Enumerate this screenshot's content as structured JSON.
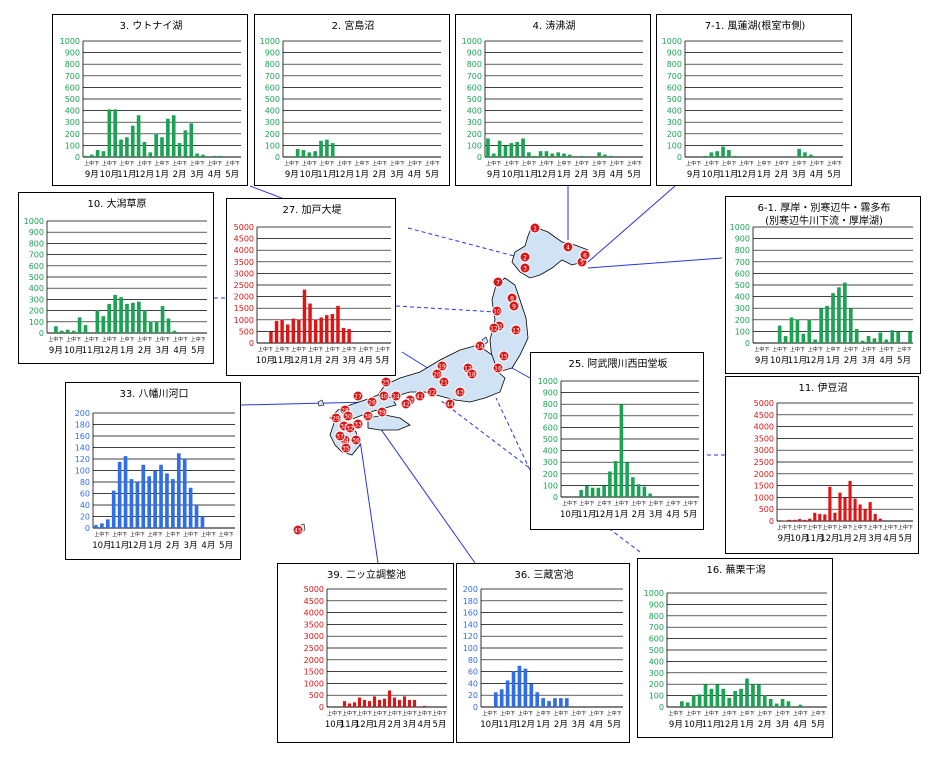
{
  "colors": {
    "green": "#1aa352",
    "red": "#e01414",
    "blue": "#2f6ee8",
    "map_fill": "#cfe3f5"
  },
  "chart_data": [
    {
      "id": "p3",
      "type": "bar",
      "title": "3. ウトナイ湖",
      "color": "green",
      "ylim": [
        0,
        1000
      ],
      "yticks": [
        "0",
        "100",
        "200",
        "300",
        "400",
        "500",
        "600",
        "700",
        "800",
        "900",
        "1000"
      ],
      "months": [
        "9月",
        "10月",
        "11月",
        "12月",
        "1月",
        "2月",
        "3月",
        "4月",
        "5月"
      ],
      "values": [
        10,
        20,
        60,
        50,
        410,
        410,
        150,
        170,
        270,
        360,
        130,
        40,
        200,
        170,
        330,
        360,
        120,
        230,
        290,
        30,
        20,
        0,
        10,
        10,
        0,
        0,
        0
      ]
    },
    {
      "id": "p2",
      "type": "bar",
      "title": "2. 宮島沼",
      "color": "green",
      "ylim": [
        0,
        1000
      ],
      "yticks": [
        "0",
        "100",
        "200",
        "300",
        "400",
        "500",
        "600",
        "700",
        "800",
        "900",
        "1000"
      ],
      "months": [
        "9月",
        "10月",
        "11月",
        "12月",
        "1月",
        "2月",
        "3月",
        "4月",
        "5月"
      ],
      "values": [
        0,
        0,
        70,
        60,
        40,
        50,
        140,
        150,
        120,
        0,
        0,
        0,
        0,
        0,
        0,
        0,
        0,
        0,
        0,
        0,
        0,
        0,
        0,
        0,
        0,
        0,
        0
      ]
    },
    {
      "id": "p4",
      "type": "bar",
      "title": "4. 涛沸湖",
      "color": "green",
      "ylim": [
        0,
        1000
      ],
      "yticks": [
        "0",
        "100",
        "200",
        "300",
        "400",
        "500",
        "600",
        "700",
        "800",
        "900",
        "1000"
      ],
      "months": [
        "9月",
        "10月",
        "11月",
        "12月",
        "1月",
        "2月",
        "3月",
        "4月",
        "5月"
      ],
      "values": [
        160,
        30,
        140,
        100,
        120,
        130,
        160,
        40,
        10,
        50,
        50,
        30,
        40,
        30,
        20,
        0,
        10,
        0,
        0,
        40,
        20,
        10,
        0,
        0,
        0,
        0,
        0
      ]
    },
    {
      "id": "p71",
      "type": "bar",
      "title": "7-1. 風蓮湖(根室市側)",
      "color": "green",
      "ylim": [
        0,
        1000
      ],
      "yticks": [
        "0",
        "100",
        "200",
        "300",
        "400",
        "500",
        "600",
        "700",
        "800",
        "900",
        "1000"
      ],
      "months": [
        "9月",
        "10月",
        "11月",
        "12月",
        "1月",
        "2月",
        "3月",
        "4月",
        "5月"
      ],
      "values": [
        0,
        0,
        0,
        10,
        40,
        50,
        90,
        60,
        10,
        0,
        0,
        0,
        0,
        0,
        0,
        0,
        0,
        0,
        0,
        70,
        40,
        20,
        0,
        0,
        0,
        0,
        0
      ]
    },
    {
      "id": "p10",
      "type": "bar",
      "title": "10. 大潟草原",
      "color": "green",
      "ylim": [
        0,
        1000
      ],
      "yticks": [
        "0",
        "100",
        "200",
        "300",
        "400",
        "500",
        "600",
        "700",
        "800",
        "900",
        "1000"
      ],
      "months": [
        "9月",
        "10月",
        "11月",
        "12月",
        "1月",
        "2月",
        "3月",
        "4月",
        "5月"
      ],
      "values": [
        0,
        60,
        20,
        30,
        20,
        140,
        70,
        0,
        200,
        150,
        260,
        340,
        320,
        260,
        270,
        280,
        200,
        100,
        100,
        240,
        130,
        20,
        0,
        0,
        0,
        0,
        0
      ]
    },
    {
      "id": "p27",
      "type": "bar",
      "title": "27. 加戸大堤",
      "color": "red",
      "ylim": [
        0,
        5000
      ],
      "yticks": [
        "0",
        "500",
        "1000",
        "1500",
        "2000",
        "2500",
        "3000",
        "3500",
        "4000",
        "4500",
        "5000"
      ],
      "months": [
        "10月",
        "11月",
        "12月",
        "1月",
        "2月",
        "3月",
        "4月",
        "5月"
      ],
      "values": [
        0,
        0,
        500,
        950,
        1000,
        800,
        1050,
        1000,
        2300,
        1700,
        1000,
        1100,
        1200,
        1250,
        1600,
        650,
        600,
        0,
        0,
        0,
        0,
        0,
        0,
        0
      ]
    },
    {
      "id": "p61",
      "type": "bar",
      "title": "6-1. 厚岸・別寒辺牛・霧多布",
      "subtitle": "(別寒辺牛川下流・厚岸湖)",
      "color": "green",
      "ylim": [
        0,
        1000
      ],
      "yticks": [
        "0",
        "100",
        "200",
        "300",
        "400",
        "500",
        "600",
        "700",
        "800",
        "900",
        "1000"
      ],
      "months": [
        "9月",
        "10月",
        "11月",
        "12月",
        "1月",
        "2月",
        "3月",
        "4月",
        "5月"
      ],
      "values": [
        0,
        0,
        0,
        0,
        150,
        60,
        220,
        200,
        80,
        200,
        30,
        300,
        320,
        430,
        480,
        520,
        300,
        120,
        20,
        60,
        40,
        90,
        30,
        110,
        100,
        0,
        100
      ]
    },
    {
      "id": "p33",
      "type": "bar",
      "title": "33. 八幡川河口",
      "color": "blue",
      "ylim": [
        0,
        200
      ],
      "yticks": [
        "0",
        "20",
        "40",
        "60",
        "80",
        "100",
        "120",
        "140",
        "160",
        "180",
        "200"
      ],
      "months": [
        "10月",
        "11月",
        "12月",
        "1月",
        "2月",
        "3月",
        "4月",
        "5月"
      ],
      "values": [
        5,
        8,
        15,
        65,
        115,
        125,
        85,
        80,
        110,
        90,
        100,
        110,
        95,
        85,
        130,
        120,
        70,
        40,
        20,
        0,
        0,
        0,
        0,
        0
      ]
    },
    {
      "id": "p25",
      "type": "bar",
      "title": "25. 阿武隈川西田堂坂",
      "color": "green",
      "ylim": [
        0,
        1000
      ],
      "yticks": [
        "0",
        "100",
        "200",
        "300",
        "400",
        "500",
        "600",
        "700",
        "800",
        "900",
        "1000"
      ],
      "months": [
        "10月",
        "11月",
        "12月",
        "1月",
        "2月",
        "3月",
        "4月",
        "5月"
      ],
      "values": [
        0,
        0,
        0,
        60,
        100,
        80,
        80,
        100,
        220,
        310,
        800,
        300,
        170,
        110,
        90,
        30,
        0,
        0,
        0,
        0,
        0,
        0,
        0,
        0
      ]
    },
    {
      "id": "p11",
      "type": "bar",
      "title": "11. 伊豆沼",
      "color": "red",
      "ylim": [
        0,
        5000
      ],
      "yticks": [
        "0",
        "500",
        "1000",
        "1500",
        "2000",
        "2500",
        "3000",
        "3500",
        "4000",
        "4500",
        "5000"
      ],
      "months": [
        "9月",
        "10月",
        "11月",
        "12月",
        "1月",
        "2月",
        "3月",
        "4月",
        "5月"
      ],
      "values": [
        0,
        20,
        50,
        50,
        80,
        50,
        100,
        350,
        300,
        280,
        1450,
        350,
        1200,
        1000,
        1700,
        950,
        700,
        500,
        800,
        300,
        100,
        0,
        0,
        0,
        0,
        0,
        0
      ]
    },
    {
      "id": "p39",
      "type": "bar",
      "title": "39. 二ッ立調整池",
      "color": "red",
      "ylim": [
        0,
        5000
      ],
      "yticks": [
        "0",
        "500",
        "1000",
        "1500",
        "2000",
        "2500",
        "3000",
        "3500",
        "4000",
        "4500",
        "5000"
      ],
      "months": [
        "10月",
        "11月",
        "12月",
        "1月",
        "2月",
        "3月",
        "4月",
        "5月"
      ],
      "values": [
        0,
        0,
        0,
        250,
        150,
        200,
        400,
        300,
        250,
        450,
        300,
        350,
        700,
        400,
        300,
        450,
        300,
        300,
        0,
        50,
        0,
        0,
        0,
        0
      ]
    },
    {
      "id": "p36",
      "type": "bar",
      "title": "36. 三蔵宮池",
      "color": "blue",
      "ylim": [
        0,
        200
      ],
      "yticks": [
        "0",
        "20",
        "40",
        "60",
        "80",
        "100",
        "120",
        "140",
        "160",
        "180",
        "200"
      ],
      "months": [
        "10月",
        "11月",
        "12月",
        "1月",
        "2月",
        "3月",
        "4月",
        "5月"
      ],
      "values": [
        0,
        0,
        25,
        30,
        45,
        60,
        70,
        65,
        40,
        25,
        15,
        10,
        15,
        15,
        15,
        0,
        0,
        0,
        0,
        0,
        0,
        0,
        0,
        0
      ]
    },
    {
      "id": "p16",
      "type": "bar",
      "title": "16. 蕪栗干潟",
      "color": "green",
      "ylim": [
        0,
        1000
      ],
      "yticks": [
        "0",
        "100",
        "200",
        "300",
        "400",
        "500",
        "600",
        "700",
        "800",
        "900",
        "1000"
      ],
      "months": [
        "9月",
        "10月",
        "11月",
        "12月",
        "1月",
        "2月",
        "3月",
        "4月",
        "5月"
      ],
      "values": [
        0,
        0,
        50,
        40,
        100,
        110,
        200,
        160,
        200,
        160,
        80,
        140,
        160,
        250,
        200,
        200,
        100,
        70,
        30,
        70,
        50,
        0,
        20,
        0,
        0,
        0,
        0
      ]
    }
  ],
  "xtick_label": "上中下",
  "markers": [
    "1",
    "2",
    "3",
    "4",
    "5",
    "6",
    "7",
    "8",
    "9",
    "10",
    "11",
    "12",
    "13",
    "14",
    "15",
    "16",
    "17",
    "18",
    "19",
    "20",
    "21",
    "22",
    "23",
    "24",
    "25",
    "26",
    "27",
    "28",
    "29",
    "30",
    "31",
    "32",
    "33",
    "34",
    "35",
    "36",
    "37",
    "38",
    "39",
    "40",
    "41",
    "42",
    "43",
    "44",
    "45"
  ]
}
